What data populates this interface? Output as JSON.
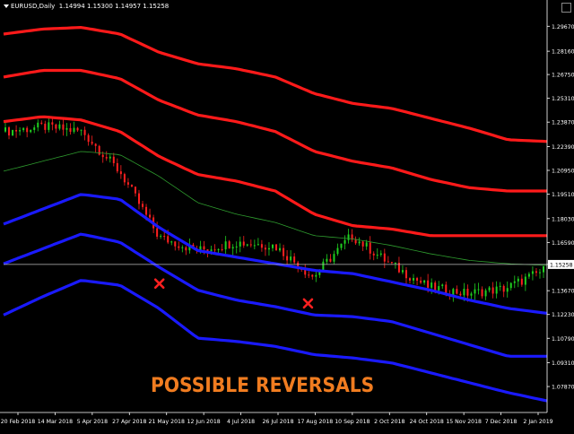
{
  "header": {
    "symbol": "EURUSD,Daily",
    "ohlc": "1.14994 1.15300 1.14957 1.15258"
  },
  "annotation": "POSSIBLE REVERSALS",
  "current_price_label": "1.15258",
  "colors": {
    "background": "#000000",
    "upper_bands": "#ff1a1a",
    "lower_bands": "#1a1aff",
    "mid_line": "#2e9b2e",
    "bull_candle": "#1fd01f",
    "bear_candle": "#ff2020",
    "marker": "#ff2020",
    "annotation": "#f07c20",
    "axis_text": "#ffffff",
    "price_line": "#bbbbbb"
  },
  "chart_data": {
    "type": "line",
    "title": "EURUSD,Daily",
    "ylim": [
      1.063,
      1.305
    ],
    "y_ticks": [
      "1.29670",
      "1.28160",
      "1.26750",
      "1.25310",
      "1.23870",
      "1.22390",
      "1.20950",
      "1.19510",
      "1.18030",
      "1.16590",
      "1.15258",
      "1.13670",
      "1.12230",
      "1.10790",
      "1.09310",
      "1.07870"
    ],
    "x_ticks": [
      "20 Feb 2018",
      "14 Mar 2018",
      "5 Apr 2018",
      "27 Apr 2018",
      "21 May 2018",
      "12 Jun 2018",
      "4 Jul 2018",
      "26 Jul 2018",
      "17 Aug 2018",
      "10 Sep 2018",
      "2 Oct 2018",
      "24 Oct 2018",
      "15 Nov 2018",
      "7 Dec 2018",
      "2 Jan 2019"
    ],
    "x": [
      "20 Feb 2018",
      "14 Mar 2018",
      "5 Apr 2018",
      "27 Apr 2018",
      "21 May 2018",
      "12 Jun 2018",
      "4 Jul 2018",
      "26 Jul 2018",
      "17 Aug 2018",
      "10 Sep 2018",
      "2 Oct 2018",
      "24 Oct 2018",
      "15 Nov 2018",
      "7 Dec 2018",
      "2 Jan 2019"
    ],
    "price": [
      1.233,
      1.236,
      1.233,
      1.208,
      1.169,
      1.161,
      1.166,
      1.164,
      1.145,
      1.17,
      1.153,
      1.139,
      1.135,
      1.138,
      1.149
    ],
    "series": [
      {
        "role": "upper-band-3",
        "color": "#ff1a1a",
        "values": [
          1.292,
          1.295,
          1.296,
          1.292,
          1.281,
          1.274,
          1.271,
          1.266,
          1.256,
          1.25,
          1.247,
          1.241,
          1.235,
          1.228,
          1.227
        ]
      },
      {
        "role": "upper-band-2",
        "color": "#ff1a1a",
        "values": [
          1.266,
          1.27,
          1.27,
          1.265,
          1.252,
          1.243,
          1.239,
          1.233,
          1.221,
          1.215,
          1.211,
          1.204,
          1.199,
          1.197,
          1.197
        ]
      },
      {
        "role": "upper-band-1",
        "color": "#ff1a1a",
        "values": [
          1.239,
          1.242,
          1.24,
          1.233,
          1.218,
          1.207,
          1.203,
          1.197,
          1.183,
          1.176,
          1.174,
          1.17,
          1.17,
          1.17,
          1.17
        ]
      },
      {
        "role": "middle-line",
        "color": "#2e9b2e",
        "values": [
          1.209,
          1.215,
          1.221,
          1.219,
          1.206,
          1.19,
          1.183,
          1.178,
          1.17,
          1.168,
          1.164,
          1.159,
          1.155,
          1.153,
          1.152
        ]
      },
      {
        "role": "lower-band-1",
        "color": "#1a1aff",
        "values": [
          1.177,
          1.186,
          1.195,
          1.192,
          1.175,
          1.161,
          1.157,
          1.153,
          1.149,
          1.147,
          1.142,
          1.137,
          1.131,
          1.126,
          1.123
        ]
      },
      {
        "role": "lower-band-2",
        "color": "#1a1aff",
        "values": [
          1.153,
          1.162,
          1.171,
          1.166,
          1.151,
          1.137,
          1.131,
          1.127,
          1.122,
          1.121,
          1.118,
          1.111,
          1.104,
          1.097,
          1.097
        ]
      },
      {
        "role": "lower-band-3",
        "color": "#1a1aff",
        "values": [
          1.122,
          1.133,
          1.143,
          1.14,
          1.126,
          1.108,
          1.106,
          1.103,
          1.098,
          1.096,
          1.093,
          1.087,
          1.081,
          1.075,
          1.07
        ]
      }
    ],
    "markers": [
      {
        "label": "x",
        "x": "21 May 2018",
        "y": 1.141
      },
      {
        "label": "x",
        "x": "17 Aug 2018",
        "y": 1.129
      }
    ],
    "current_price": 1.15258,
    "grid": false,
    "legend": "none"
  }
}
